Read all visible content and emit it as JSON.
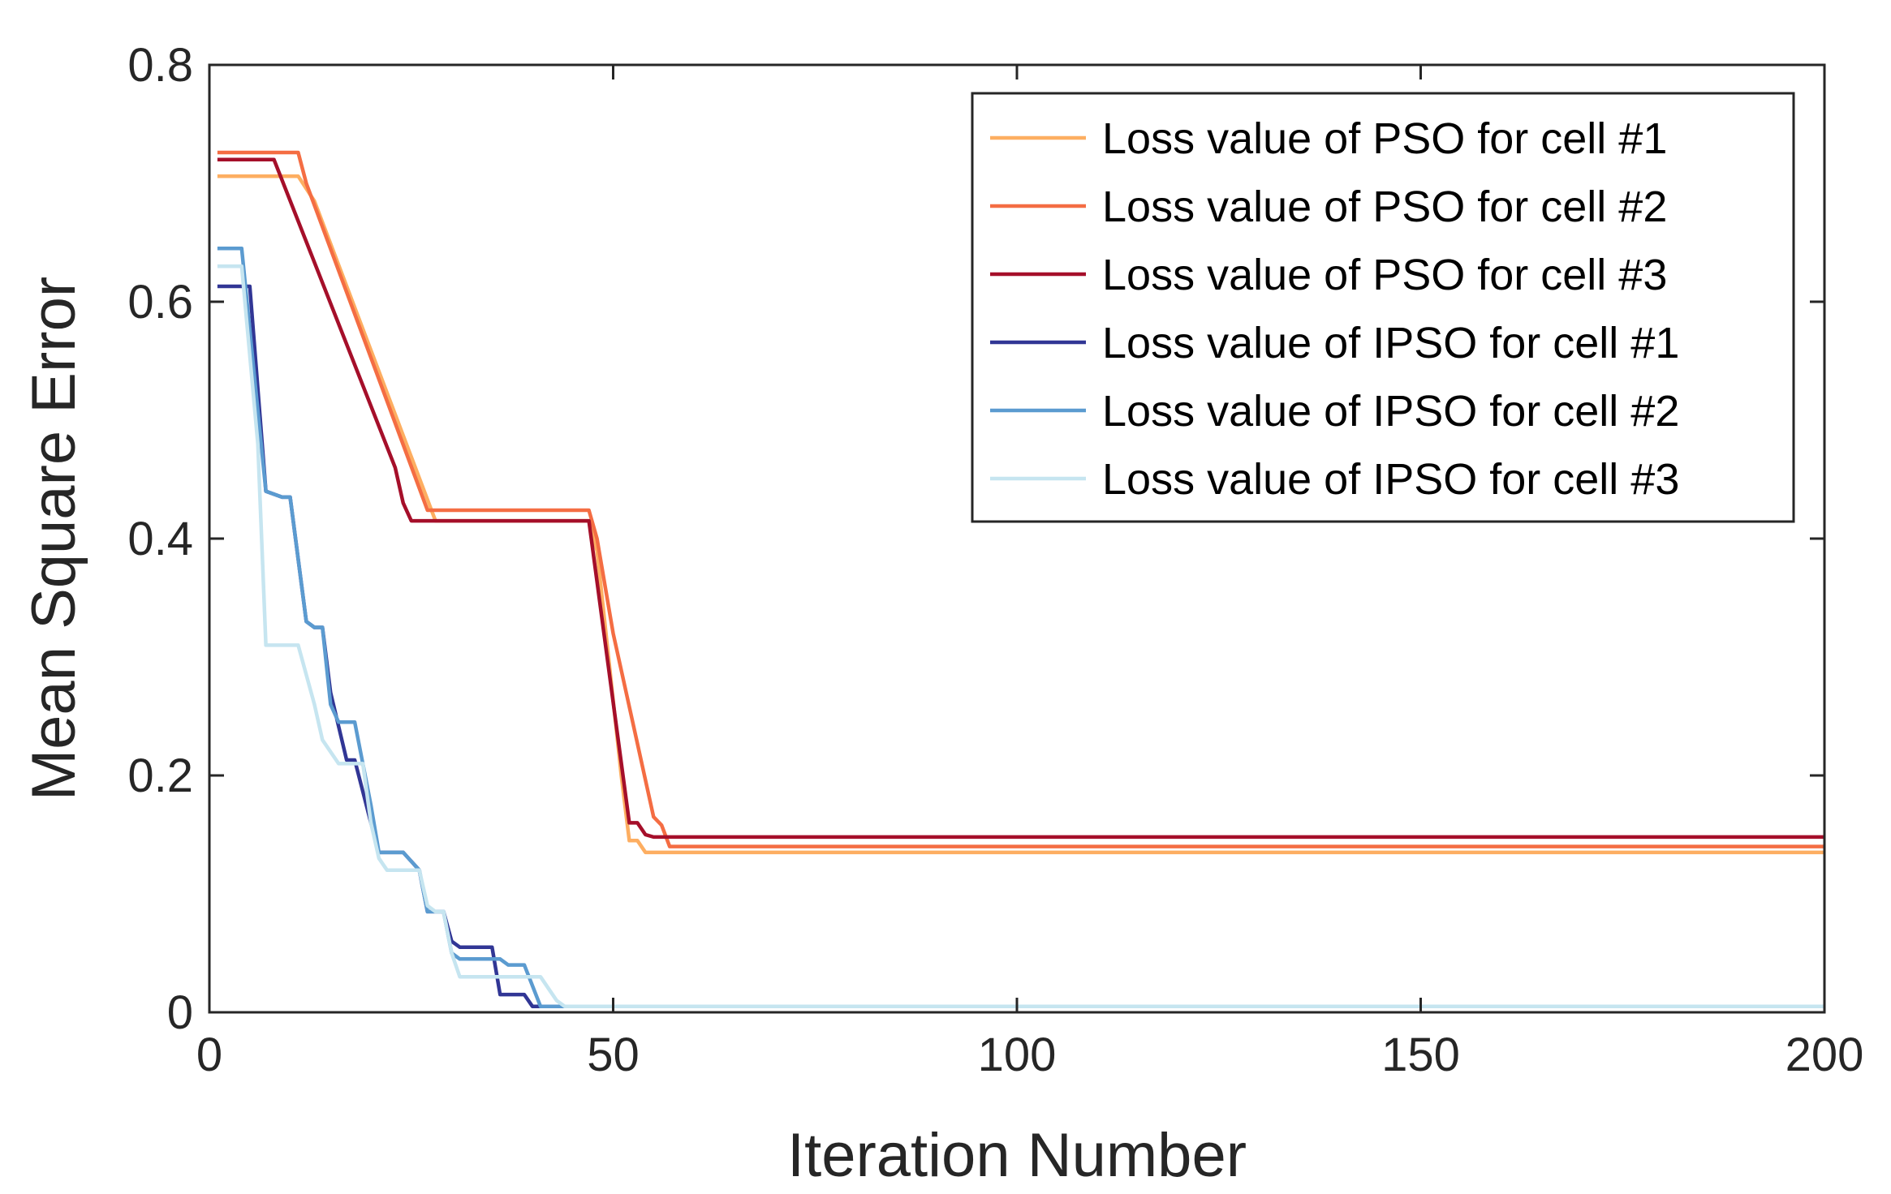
{
  "chart_data": {
    "type": "line",
    "title": "",
    "xlabel": "Iteration Number",
    "ylabel": "Mean Square Error",
    "xlim": [
      0,
      200
    ],
    "ylim": [
      0,
      0.8
    ],
    "xticks": [
      0,
      50,
      100,
      150,
      200
    ],
    "xtick_labels": [
      "0",
      "50",
      "100",
      "150",
      "200"
    ],
    "yticks": [
      0,
      0.2,
      0.4,
      0.6,
      0.8
    ],
    "ytick_labels": [
      "0",
      "0.2",
      "0.4",
      "0.6",
      "0.8"
    ],
    "grid": false,
    "legend_position": "top-right",
    "series": [
      {
        "name": "Loss value of PSO for cell #1",
        "color": "#fdae61",
        "x": [
          1,
          11,
          13,
          28,
          47,
          48,
          51,
          52,
          53,
          54,
          200
        ],
        "y": [
          0.706,
          0.706,
          0.685,
          0.415,
          0.415,
          0.39,
          0.2,
          0.145,
          0.145,
          0.135,
          0.135
        ]
      },
      {
        "name": "Loss value of PSO for cell #2",
        "color": "#f46d43",
        "x": [
          1,
          11,
          12,
          27,
          47,
          48,
          50,
          55,
          56,
          57,
          200
        ],
        "y": [
          0.726,
          0.726,
          0.7,
          0.424,
          0.424,
          0.4,
          0.32,
          0.165,
          0.158,
          0.14,
          0.14
        ]
      },
      {
        "name": "Loss value of PSO for cell #3",
        "color": "#a50f2a",
        "x": [
          1,
          8,
          23,
          24,
          25,
          47,
          52,
          53,
          54,
          55,
          200
        ],
        "y": [
          0.72,
          0.72,
          0.46,
          0.43,
          0.415,
          0.415,
          0.16,
          0.16,
          0.15,
          0.148,
          0.148
        ]
      },
      {
        "name": "Loss value of IPSO for cell #1",
        "color": "#313695",
        "x": [
          1,
          5,
          7,
          9,
          10,
          12,
          13,
          14,
          15,
          17,
          18,
          20,
          21,
          22,
          24,
          26,
          27,
          28,
          29,
          30,
          31,
          35,
          36,
          39,
          40,
          200
        ],
        "y": [
          0.613,
          0.613,
          0.44,
          0.435,
          0.435,
          0.33,
          0.325,
          0.325,
          0.27,
          0.213,
          0.213,
          0.16,
          0.135,
          0.135,
          0.135,
          0.12,
          0.085,
          0.085,
          0.085,
          0.06,
          0.055,
          0.055,
          0.015,
          0.015,
          0.005,
          0.005
        ]
      },
      {
        "name": "Loss value of IPSO for cell #2",
        "color": "#5b9bd0",
        "x": [
          1,
          4,
          7,
          9,
          10,
          12,
          13,
          14,
          15,
          16,
          17,
          18,
          20,
          21,
          22,
          24,
          26,
          27,
          28,
          29,
          30,
          31,
          36,
          37,
          39,
          41,
          200
        ],
        "y": [
          0.645,
          0.645,
          0.44,
          0.435,
          0.435,
          0.33,
          0.325,
          0.325,
          0.26,
          0.245,
          0.245,
          0.245,
          0.175,
          0.135,
          0.135,
          0.135,
          0.12,
          0.085,
          0.085,
          0.085,
          0.05,
          0.045,
          0.045,
          0.04,
          0.04,
          0.005,
          0.005
        ]
      },
      {
        "name": "Loss value of IPSO for cell #3",
        "color": "#c6e5f0",
        "x": [
          1,
          4,
          6,
          7,
          9,
          11,
          13,
          14,
          16,
          17,
          19,
          20,
          21,
          22,
          24,
          26,
          27,
          28,
          29,
          30,
          31,
          38,
          40,
          41,
          42,
          43,
          44,
          200
        ],
        "y": [
          0.63,
          0.63,
          0.48,
          0.31,
          0.31,
          0.31,
          0.26,
          0.23,
          0.21,
          0.21,
          0.21,
          0.16,
          0.13,
          0.12,
          0.12,
          0.12,
          0.09,
          0.085,
          0.085,
          0.05,
          0.03,
          0.03,
          0.03,
          0.03,
          0.02,
          0.01,
          0.005,
          0.005
        ]
      }
    ]
  }
}
